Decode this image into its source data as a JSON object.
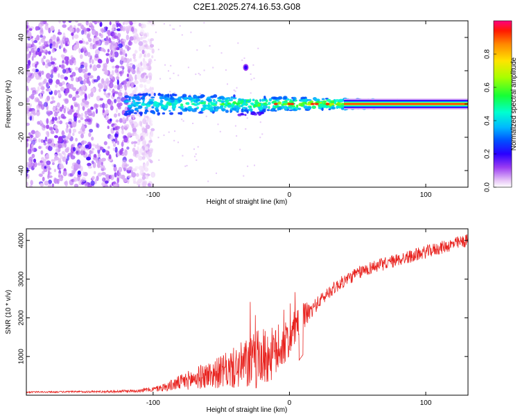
{
  "chart_data": [
    {
      "type": "heatmap",
      "title": "C2E1.2025.274.16.53.G08",
      "xlabel": "Height of straight line (km)",
      "ylabel": "Frequency (Hz)",
      "xlim": [
        -193,
        131
      ],
      "ylim": [
        -50,
        50
      ],
      "x_ticks": [
        "-100",
        "0",
        "100"
      ],
      "x_tick_values": [
        -100,
        0,
        100
      ],
      "y_ticks": [
        "40",
        "20",
        "0",
        "-20",
        "-40"
      ],
      "y_tick_values": [
        40,
        20,
        0,
        -20,
        -40
      ],
      "noise_region_km": [
        -193,
        -100
      ],
      "signal_band": {
        "center_hz": 0,
        "start_km": -120,
        "end_km": 131,
        "strong_segment_km": [
          40,
          131
        ]
      },
      "isolated_blob": {
        "km": -32,
        "hz": 22
      },
      "colorbar": {
        "label": "Normalized spectral amplitude",
        "ticks": [
          "0.0",
          "0.2",
          "0.4",
          "0.6",
          "0.8"
        ],
        "tick_values": [
          0.0,
          0.2,
          0.4,
          0.6,
          0.8
        ],
        "range": [
          0,
          1
        ]
      }
    },
    {
      "type": "line",
      "title": "",
      "xlabel": "Height of straight line (km)",
      "ylabel": "SNR (10 * v/v)",
      "xlim": [
        -193,
        131
      ],
      "ylim": [
        0,
        4300
      ],
      "x_ticks": [
        "-100",
        "0",
        "100"
      ],
      "x_tick_values": [
        -100,
        0,
        100
      ],
      "y_ticks": [
        "4000",
        "3000",
        "2000",
        "1000"
      ],
      "y_tick_values": [
        4000,
        3000,
        2000,
        1000
      ],
      "series": [
        {
          "name": "SNR",
          "color": "#e8231f",
          "x": [
            -193,
            -170,
            -150,
            -130,
            -115,
            -100,
            -90,
            -80,
            -70,
            -60,
            -50,
            -40,
            -30,
            -20,
            -10,
            0,
            5,
            10,
            15,
            20,
            30,
            40,
            50,
            60,
            70,
            80,
            90,
            100,
            110,
            120,
            131
          ],
          "y": [
            80,
            85,
            90,
            95,
            110,
            150,
            220,
            330,
            430,
            520,
            600,
            700,
            820,
            950,
            1100,
            1450,
            1800,
            2050,
            2150,
            2350,
            2700,
            2950,
            3150,
            3300,
            3400,
            3500,
            3600,
            3700,
            3800,
            3900,
            4000
          ],
          "noise_amplitude": [
            20,
            20,
            25,
            30,
            40,
            60,
            120,
            200,
            280,
            350,
            420,
            550,
            700,
            800,
            650,
            500,
            450,
            350,
            250,
            180,
            170,
            170,
            170,
            170,
            170,
            170,
            170,
            170,
            170,
            170,
            170
          ]
        }
      ]
    }
  ]
}
